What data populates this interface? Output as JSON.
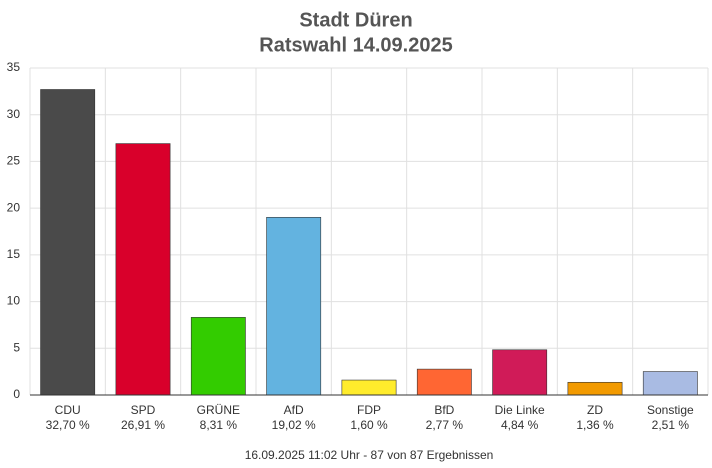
{
  "chart_data": {
    "type": "bar",
    "title": "Stadt Düren",
    "subtitle": "Ratswahl 14.09.2025",
    "categories": [
      "CDU",
      "SPD",
      "GRÜNE",
      "AfD",
      "FDP",
      "BfD",
      "Die Linke",
      "ZD",
      "Sonstige"
    ],
    "values": [
      32.7,
      26.91,
      8.31,
      19.02,
      1.6,
      2.77,
      4.84,
      1.36,
      2.51
    ],
    "value_labels": [
      "32,70 %",
      "26,91 %",
      "8,31 %",
      "19,02 %",
      "1,60 %",
      "2,77 %",
      "4,84 %",
      "1,36 %",
      "2,51 %"
    ],
    "colors": [
      "#4a4a4a",
      "#d9002b",
      "#33cc00",
      "#63b3e0",
      "#ffec2c",
      "#ff6633",
      "#d01b58",
      "#f29a00",
      "#a9bbe3"
    ],
    "ylim": [
      0,
      35
    ],
    "yticks": [
      0,
      5,
      10,
      15,
      20,
      25,
      30,
      35
    ],
    "grid": true,
    "footer": "16.09.2025 11:02 Uhr - 87 von 87 Ergebnissen"
  }
}
